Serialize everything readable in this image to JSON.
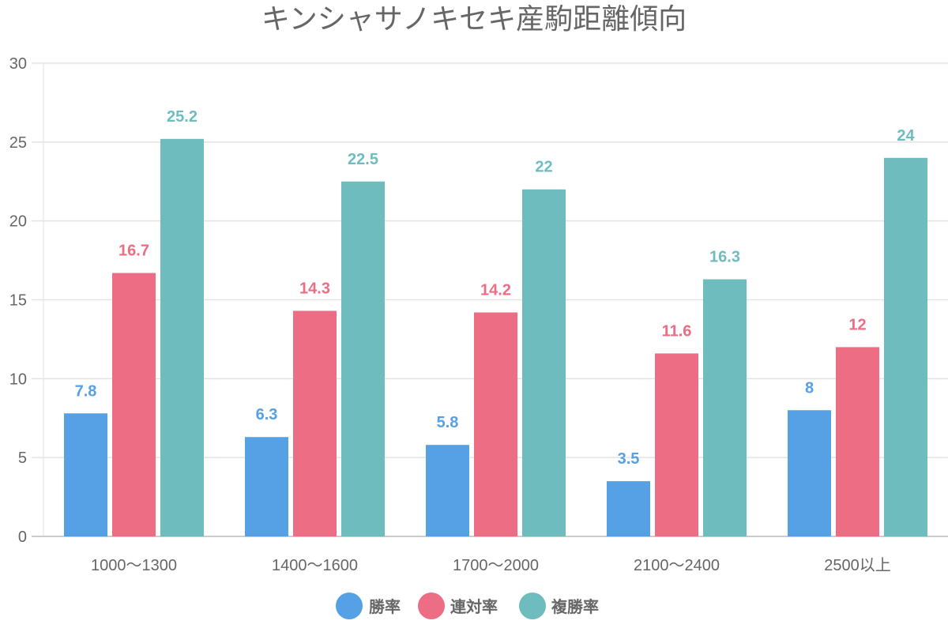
{
  "chart_data": {
    "type": "bar",
    "title": "キンシャサノキセキ産駒距離傾向",
    "xlabel": "",
    "ylabel": "",
    "ylim": [
      0,
      30
    ],
    "yticks": [
      "0",
      "5",
      "10",
      "15",
      "20",
      "25",
      "30"
    ],
    "grid": true,
    "legend_position": "bottom",
    "categories": [
      "1000～1300",
      "1400～1600",
      "1700～2000",
      "2100～2400",
      "2500以上"
    ],
    "series": [
      {
        "name": "勝率",
        "color": "#56a0e5",
        "values": [
          7.8,
          6.3,
          5.8,
          3.5,
          8
        ]
      },
      {
        "name": "連対率",
        "color": "#ed6d84",
        "values": [
          16.7,
          14.3,
          14.2,
          11.6,
          12
        ]
      },
      {
        "name": "複勝率",
        "color": "#6fbcbf",
        "values": [
          25.2,
          22.5,
          22,
          16.3,
          24
        ]
      }
    ]
  }
}
